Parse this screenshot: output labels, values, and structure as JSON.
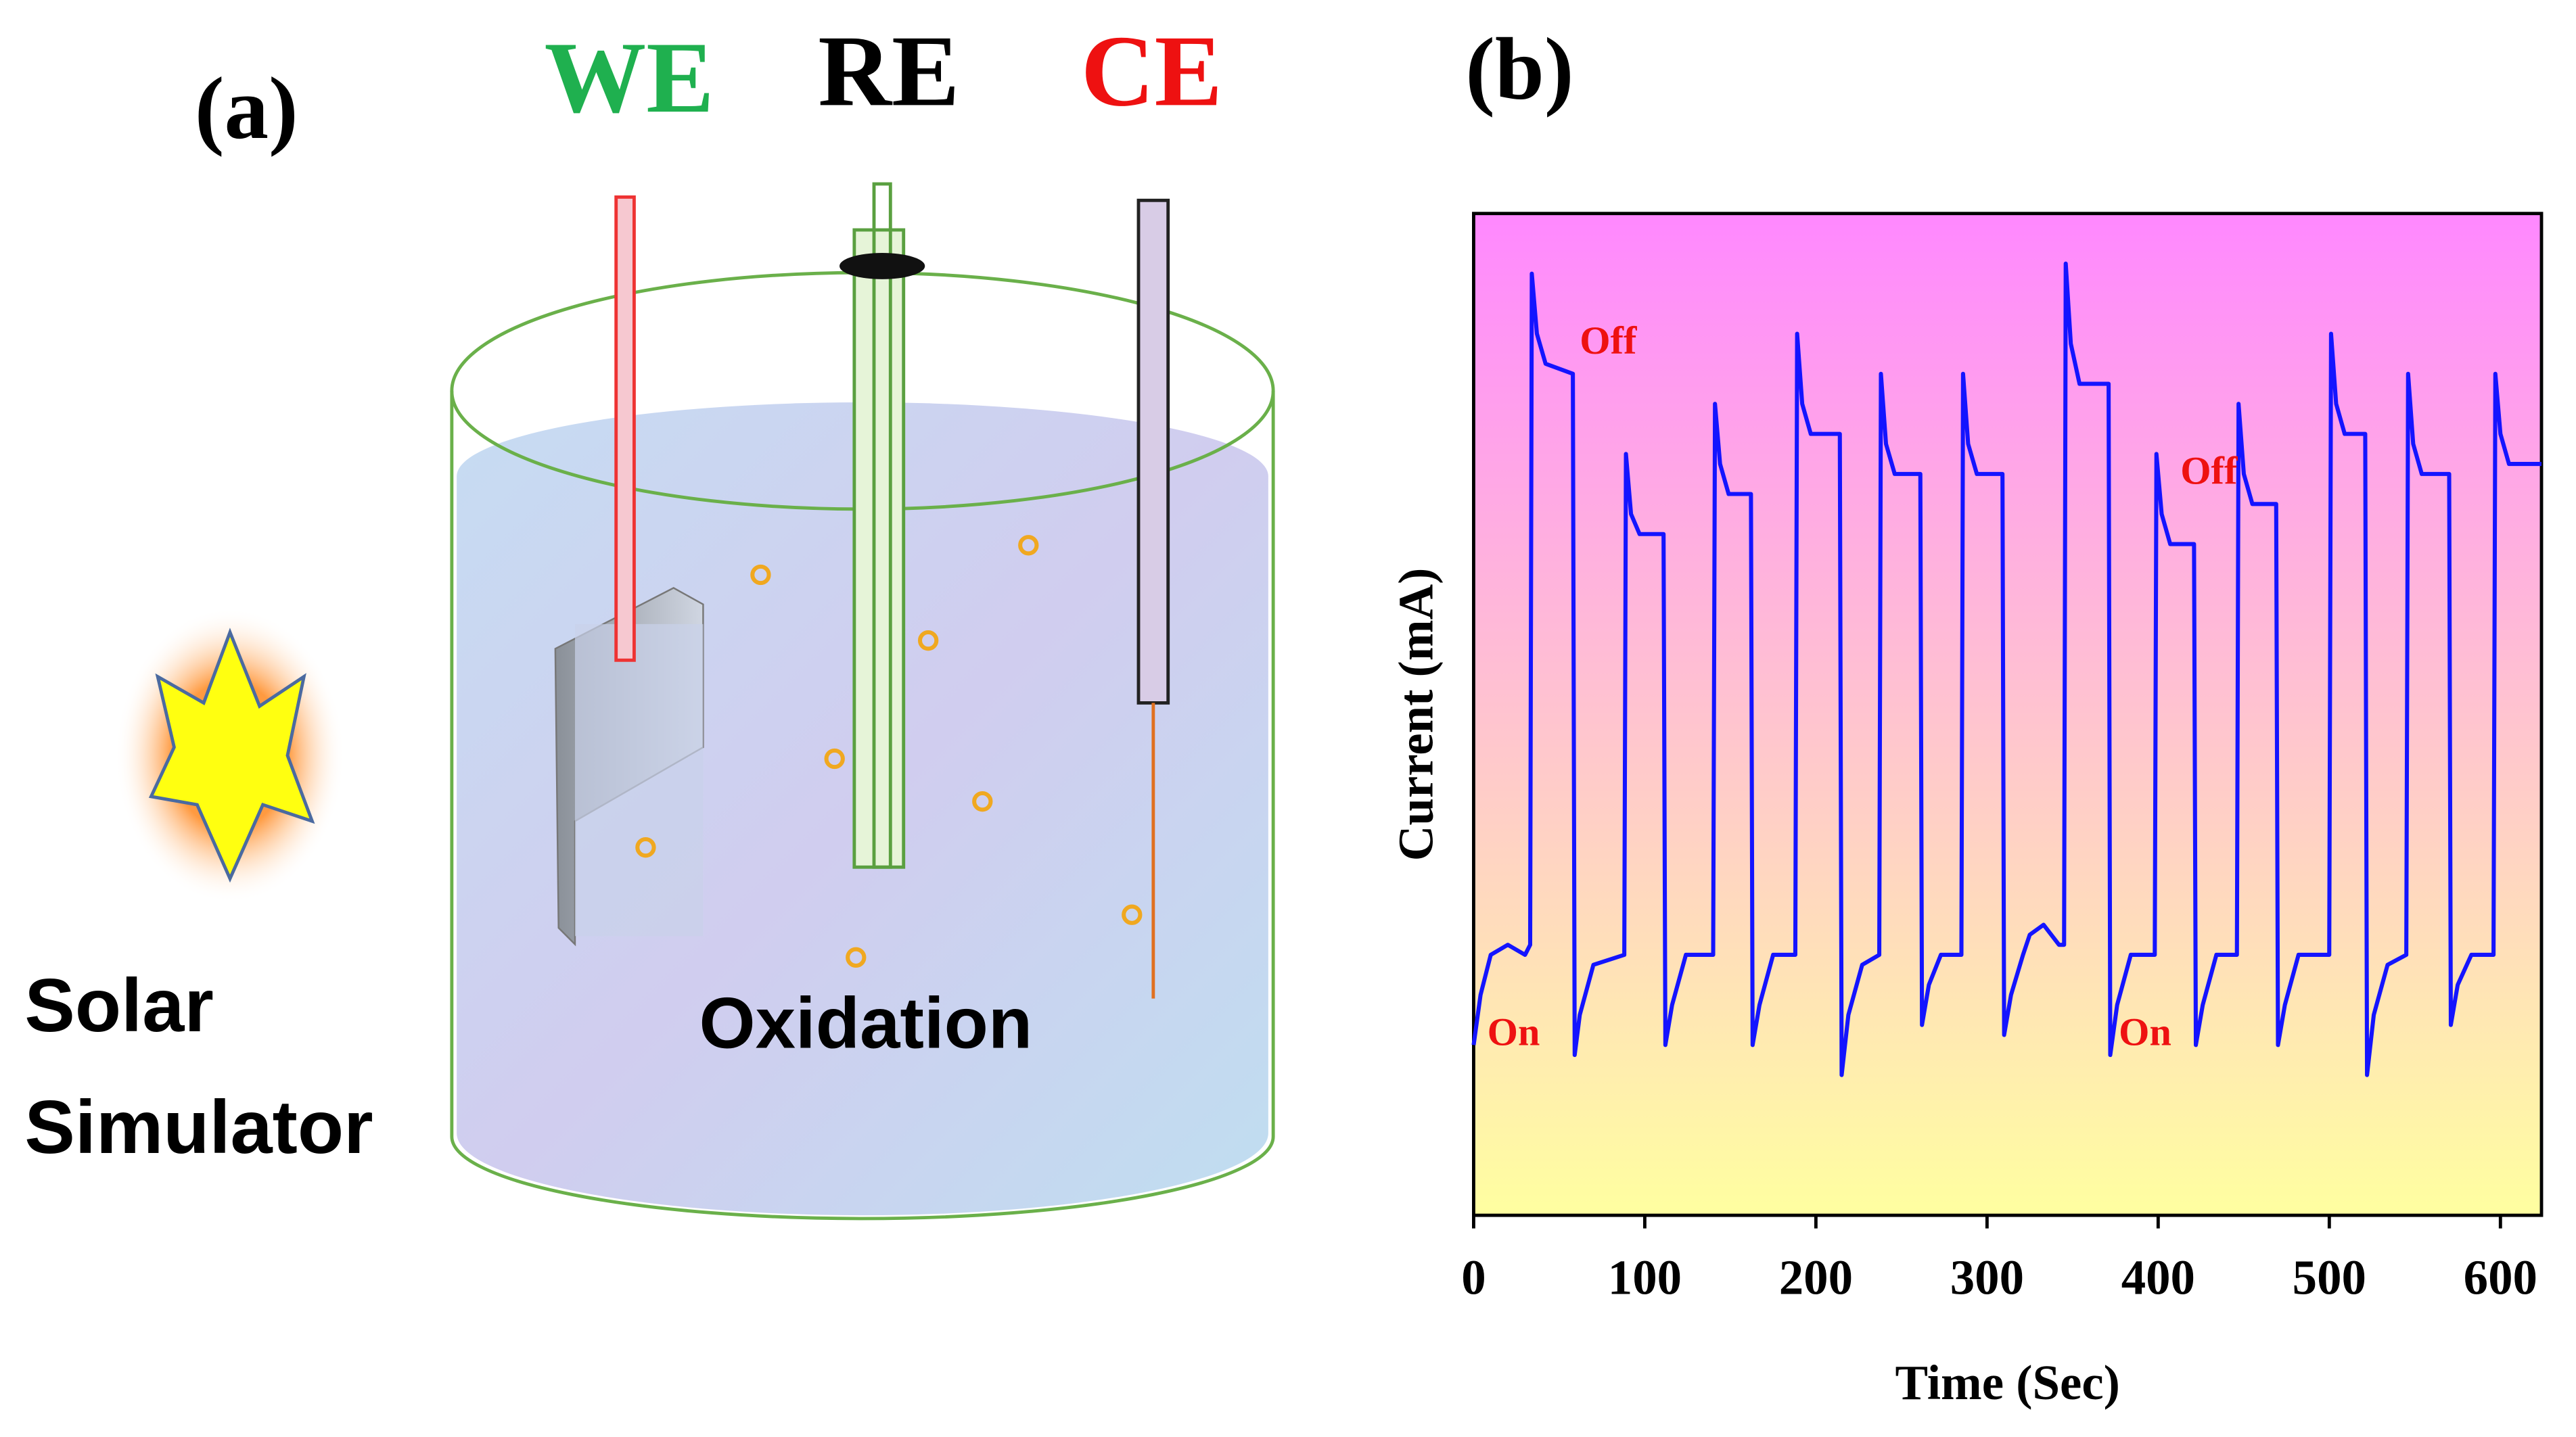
{
  "diagram": {
    "panel_label": "(a)",
    "electrodes": [
      "WE",
      "RE",
      "CE"
    ],
    "electrode_colors": [
      "#1fb04f",
      "#000000",
      "#ee1111"
    ],
    "light_source": [
      "Solar",
      "Simulator"
    ],
    "process": "Oxidation"
  },
  "chart_data": {
    "type": "line",
    "panel_label": "(b)",
    "xlabel": "Time (Sec)",
    "ylabel": "Current (mA)",
    "xlim": [
      0,
      624
    ],
    "xticks": [
      0,
      100,
      200,
      300,
      400,
      500,
      600
    ],
    "ylim": [
      0,
      100
    ],
    "background_colors": [
      "#ff88ff",
      "#ffffa0"
    ],
    "x": [
      0,
      4,
      10,
      20,
      30,
      33,
      34,
      37,
      42,
      58,
      59,
      62,
      70,
      88,
      89,
      92,
      97,
      111,
      112,
      116,
      124,
      140,
      141,
      144,
      149,
      162,
      163,
      167,
      175,
      188,
      189,
      192,
      197,
      214,
      215,
      219,
      227,
      237,
      238,
      241,
      246,
      261,
      262,
      266,
      273,
      285,
      286,
      289,
      294,
      309,
      310,
      314,
      321,
      325,
      333,
      342,
      345,
      346,
      349,
      354,
      371,
      372,
      376,
      384,
      398,
      399,
      402,
      407,
      421,
      422,
      426,
      434,
      446,
      447,
      450,
      455,
      469,
      470,
      474,
      482,
      500,
      501,
      504,
      509,
      521,
      522,
      526,
      534,
      545,
      546,
      549,
      554,
      570,
      571,
      575,
      583,
      596,
      597,
      600,
      605,
      624
    ],
    "series": [
      {
        "color": "#1414ff",
        "values": [
          17,
          22,
          26,
          27,
          26,
          27,
          94,
          88,
          85,
          84,
          16,
          20,
          25,
          26,
          76,
          70,
          68,
          68,
          17,
          21,
          26,
          26,
          81,
          75,
          72,
          72,
          17,
          21,
          26,
          26,
          88,
          81,
          78,
          78,
          14,
          20,
          25,
          26,
          84,
          77,
          74,
          74,
          19,
          23,
          26,
          26,
          84,
          77,
          74,
          74,
          18,
          22,
          26,
          28,
          29,
          27,
          27,
          95,
          87,
          83,
          83,
          16,
          21,
          26,
          26,
          76,
          70,
          67,
          67,
          17,
          21,
          26,
          26,
          81,
          74,
          71,
          71,
          17,
          21,
          26,
          26,
          88,
          81,
          78,
          78,
          14,
          20,
          25,
          26,
          84,
          77,
          74,
          74,
          19,
          23,
          26,
          26,
          84,
          78,
          75,
          75
        ]
      }
    ],
    "annotations": [
      {
        "text": "Off",
        "x": 62,
        "y": 86
      },
      {
        "text": "On",
        "x": 8,
        "y": 17
      },
      {
        "text": "Off",
        "x": 413,
        "y": 73
      },
      {
        "text": "On",
        "x": 377,
        "y": 17
      }
    ],
    "annotation_color": "#ee1111"
  }
}
